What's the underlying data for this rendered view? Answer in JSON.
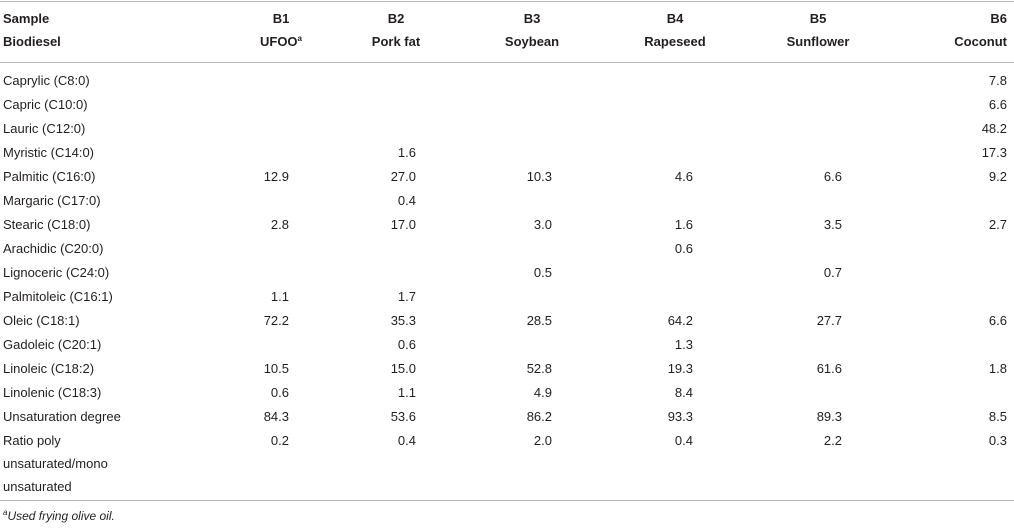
{
  "header": {
    "row_label_line1": "Sample",
    "row_label_line2": "Biodiesel",
    "columns": [
      {
        "code": "B1",
        "name": "UFOO",
        "sup": "a"
      },
      {
        "code": "B2",
        "name": "Pork fat",
        "sup": ""
      },
      {
        "code": "B3",
        "name": "Soybean",
        "sup": ""
      },
      {
        "code": "B4",
        "name": "Rapeseed",
        "sup": ""
      },
      {
        "code": "B5",
        "name": "Sunflower",
        "sup": ""
      },
      {
        "code": "B6",
        "name": "Coconut",
        "sup": ""
      }
    ]
  },
  "rows": [
    {
      "label": [
        "Caprylic (C8:0)"
      ],
      "values": [
        "",
        "",
        "",
        "",
        "",
        "7.8"
      ]
    },
    {
      "label": [
        "Capric (C10:0)"
      ],
      "values": [
        "",
        "",
        "",
        "",
        "",
        "6.6"
      ]
    },
    {
      "label": [
        "Lauric (C12:0)"
      ],
      "values": [
        "",
        "",
        "",
        "",
        "",
        "48.2"
      ]
    },
    {
      "label": [
        "Myristic (C14:0)"
      ],
      "values": [
        "",
        "1.6",
        "",
        "",
        "",
        "17.3"
      ]
    },
    {
      "label": [
        "Palmitic (C16:0)"
      ],
      "values": [
        "12.9",
        "27.0",
        "10.3",
        "4.6",
        "6.6",
        "9.2"
      ]
    },
    {
      "label": [
        "Margaric (C17:0)"
      ],
      "values": [
        "",
        "0.4",
        "",
        "",
        "",
        ""
      ]
    },
    {
      "label": [
        "Stearic (C18:0)"
      ],
      "values": [
        "2.8",
        "17.0",
        "3.0",
        "1.6",
        "3.5",
        "2.7"
      ]
    },
    {
      "label": [
        "Arachidic (C20:0)"
      ],
      "values": [
        "",
        "",
        "",
        "0.6",
        "",
        ""
      ]
    },
    {
      "label": [
        "Lignoceric (C24:0)"
      ],
      "values": [
        "",
        "",
        "0.5",
        "",
        "0.7",
        ""
      ]
    },
    {
      "label": [
        "Palmitoleic (C16:1)"
      ],
      "values": [
        "1.1",
        "1.7",
        "",
        "",
        "",
        ""
      ]
    },
    {
      "label": [
        "Oleic (C18:1)"
      ],
      "values": [
        "72.2",
        "35.3",
        "28.5",
        "64.2",
        "27.7",
        "6.6"
      ]
    },
    {
      "label": [
        "Gadoleic (C20:1)"
      ],
      "values": [
        "",
        "0.6",
        "",
        "1.3",
        "",
        ""
      ]
    },
    {
      "label": [
        "Linoleic (C18:2)"
      ],
      "values": [
        "10.5",
        "15.0",
        "52.8",
        "19.3",
        "61.6",
        "1.8"
      ]
    },
    {
      "label": [
        "Linolenic (C18:3)"
      ],
      "values": [
        "0.6",
        "1.1",
        "4.9",
        "8.4",
        "",
        ""
      ]
    },
    {
      "label": [
        "Unsaturation degree"
      ],
      "values": [
        "84.3",
        "53.6",
        "86.2",
        "93.3",
        "89.3",
        "8.5"
      ]
    },
    {
      "label": [
        "Ratio poly",
        "unsaturated/mono",
        "unsaturated"
      ],
      "values": [
        "0.2",
        "0.4",
        "2.0",
        "0.4",
        "2.2",
        "0.3"
      ]
    }
  ],
  "footnote": {
    "mark": "a",
    "text": "Used frying olive oil."
  }
}
